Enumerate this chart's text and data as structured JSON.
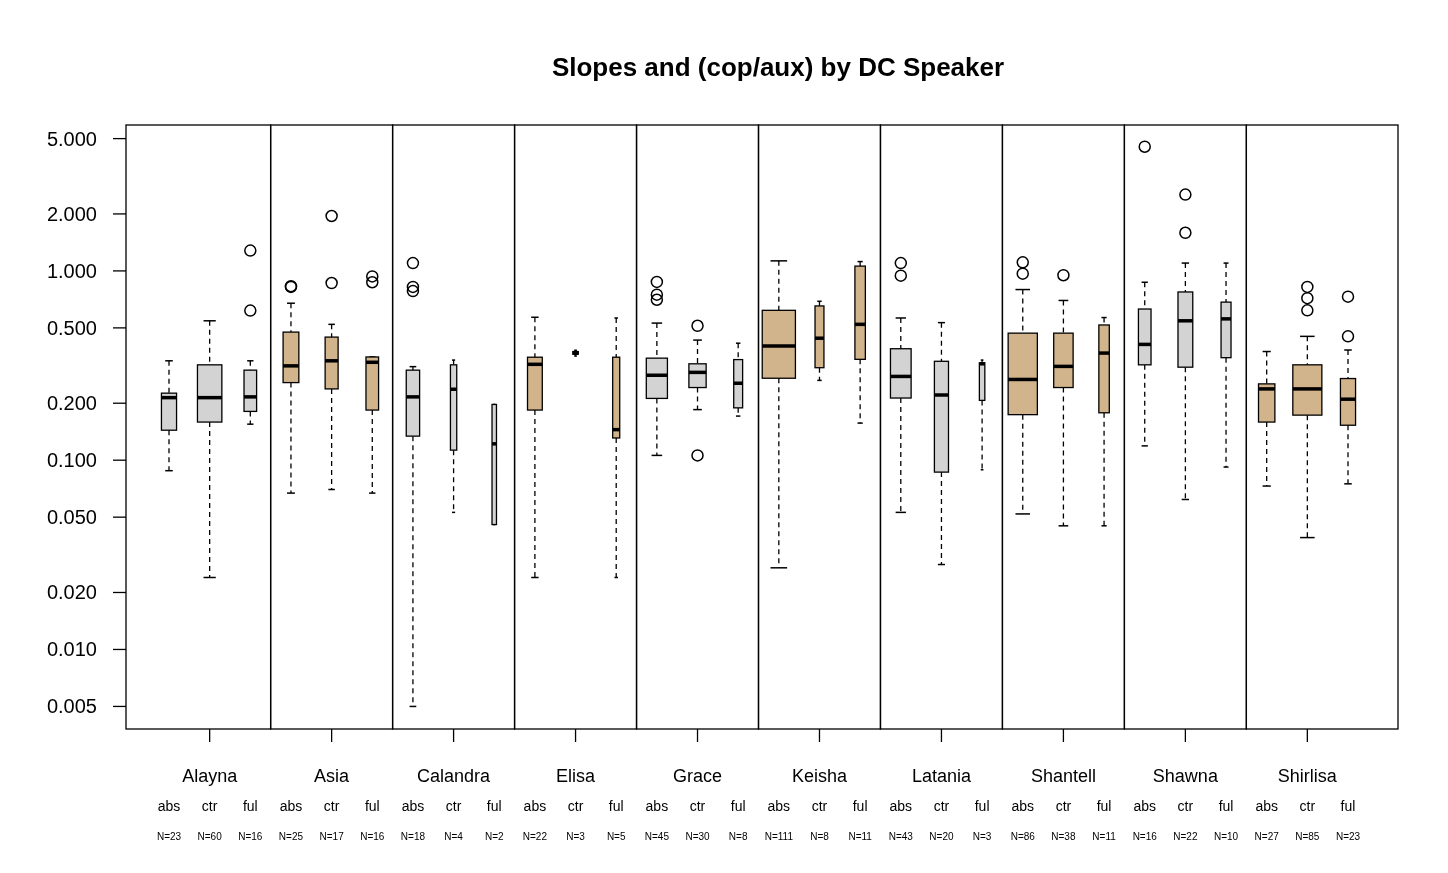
{
  "chart_data": [
    {
      "type": "box",
      "xlabel": "Alayna",
      "categories": [
        "abs",
        "ctr",
        "ful"
      ],
      "log": true,
      "ylim": [
        0.0038,
        5.9
      ],
      "yticks": [
        {
          "value": 0.005,
          "label": "0.005"
        },
        {
          "value": 0.01,
          "label": "0.010"
        },
        {
          "value": 0.02,
          "label": "0.020"
        },
        {
          "value": 0.05,
          "label": "0.050"
        },
        {
          "value": 0.1,
          "label": "0.100"
        },
        {
          "value": 0.2,
          "label": "0.200"
        },
        {
          "value": 0.5,
          "label": "0.500"
        },
        {
          "value": 1,
          "label": "1.000"
        },
        {
          "value": 2,
          "label": "2.000"
        },
        {
          "value": 5,
          "label": "5.000"
        }
      ],
      "colors": [
        "#d3d3d3",
        "#d3d3d3",
        "#d3d3d3"
      ],
      "boxes": [
        {
          "low": 0.088,
          "q1": 0.144,
          "median": 0.214,
          "q3": 0.226,
          "high": 0.335
        },
        {
          "low": 0.024,
          "q1": 0.159,
          "median": 0.214,
          "q3": 0.319,
          "high": 0.545
        },
        {
          "low": 0.155,
          "q1": 0.181,
          "median": 0.216,
          "q3": 0.299,
          "high": 0.335,
          "outliers": [
            1.28,
            0.617
          ]
        }
      ],
      "annotations": [
        "N=23",
        "N=60",
        "N=16"
      ]
    },
    {
      "type": "box",
      "xlabel": "Asia",
      "categories": [
        "abs",
        "ctr",
        "ful"
      ],
      "log": true,
      "tick_labels": "x",
      "ylim": [
        0.0038,
        5.9
      ],
      "colors": [
        "#d2b48c",
        "#d2b48c",
        "#d2b48c"
      ],
      "boxes": [
        {
          "low": 0.067,
          "q1": 0.257,
          "median": 0.315,
          "q3": 0.475,
          "high": 0.675,
          "outliers": [
            0.823,
            0.83
          ]
        },
        {
          "low": 0.07,
          "q1": 0.238,
          "median": 0.335,
          "q3": 0.447,
          "high": 0.522,
          "outliers": [
            1.95,
            0.863
          ]
        },
        {
          "low": 0.067,
          "q1": 0.184,
          "median": 0.329,
          "q3": 0.351,
          "high": 0.351,
          "outliers": [
            0.935,
            0.871
          ]
        }
      ],
      "annotations": [
        "N=25",
        "N=17",
        "N=16"
      ]
    },
    {
      "type": "box",
      "xlabel": "Calandra",
      "categories": [
        "abs",
        "ctr",
        "ful"
      ],
      "log": true,
      "tick_labels": "x",
      "ylim": [
        0.0038,
        5.9
      ],
      "colors": [
        "#d3d3d3",
        "#d3d3d3",
        "#d3d3d3"
      ],
      "boxes": [
        {
          "low": 0.005,
          "q1": 0.134,
          "median": 0.216,
          "q3": 0.299,
          "high": 0.312,
          "outliers": [
            1.1,
            0.823,
            0.782
          ]
        },
        {
          "low": 0.053,
          "q1": 0.113,
          "median": 0.237,
          "q3": 0.319,
          "high": 0.338
        },
        {
          "low": 0.0457,
          "q1": 0.0457,
          "median": 0.122,
          "q3": 0.197,
          "high": 0.197
        }
      ],
      "annotations": [
        "N=18",
        "N=4",
        "N=2"
      ]
    },
    {
      "type": "box",
      "xlabel": "Elisa",
      "categories": [
        "abs",
        "ctr",
        "ful"
      ],
      "log": true,
      "tick_labels": "x",
      "ylim": [
        0.0038,
        5.9
      ],
      "colors": [
        "#d2b48c",
        "#d2b48c",
        "#d2b48c"
      ],
      "boxes": [
        {
          "low": 0.024,
          "q1": 0.184,
          "median": 0.321,
          "q3": 0.35,
          "high": 0.569
        },
        {
          "low": 0.355,
          "q1": 0.363,
          "median": 0.368,
          "q3": 0.375,
          "high": 0.381
        },
        {
          "low": 0.024,
          "q1": 0.131,
          "median": 0.145,
          "q3": 0.35,
          "high": 0.564
        }
      ],
      "annotations": [
        "N=22",
        "N=3",
        "N=5"
      ]
    },
    {
      "type": "box",
      "xlabel": "Grace",
      "categories": [
        "abs",
        "ctr",
        "ful"
      ],
      "log": true,
      "tick_labels": "x",
      "ylim": [
        0.0038,
        5.9
      ],
      "colors": [
        "#d3d3d3",
        "#d3d3d3",
        "#d3d3d3"
      ],
      "boxes": [
        {
          "low": 0.106,
          "q1": 0.212,
          "median": 0.281,
          "q3": 0.346,
          "high": 0.53,
          "outliers": [
            0.875,
            0.749,
            0.704
          ]
        },
        {
          "low": 0.185,
          "q1": 0.242,
          "median": 0.291,
          "q3": 0.323,
          "high": 0.431,
          "outliers": [
            0.513,
            0.106
          ]
        },
        {
          "low": 0.171,
          "q1": 0.189,
          "median": 0.255,
          "q3": 0.34,
          "high": 0.415
        }
      ],
      "annotations": [
        "N=45",
        "N=30",
        "N=8"
      ]
    },
    {
      "type": "box",
      "title": "Slopes and (cop/aux) by DC Speaker",
      "xlabel": "Keisha",
      "categories": [
        "abs",
        "ctr",
        "ful"
      ],
      "log": true,
      "tick_labels": "x",
      "ylim": [
        0.0038,
        5.9
      ],
      "colors": [
        "#d2b48c",
        "#d2b48c",
        "#d2b48c"
      ],
      "boxes": [
        {
          "low": 0.027,
          "q1": 0.271,
          "median": 0.401,
          "q3": 0.619,
          "high": 1.13
        },
        {
          "low": 0.264,
          "q1": 0.308,
          "median": 0.441,
          "q3": 0.653,
          "high": 0.691
        },
        {
          "low": 0.157,
          "q1": 0.341,
          "median": 0.522,
          "q3": 1.06,
          "high": 1.12
        }
      ],
      "annotations": [
        "N=111",
        "N=8",
        "N=11"
      ]
    },
    {
      "type": "box",
      "xlabel": "Latania",
      "categories": [
        "abs",
        "ctr",
        "ful"
      ],
      "log": true,
      "tick_labels": "x",
      "ylim": [
        0.0038,
        5.9
      ],
      "colors": [
        "#d3d3d3",
        "#d3d3d3",
        "#d3d3d3"
      ],
      "boxes": [
        {
          "low": 0.053,
          "q1": 0.213,
          "median": 0.277,
          "q3": 0.388,
          "high": 0.564,
          "outliers": [
            1.1,
            0.944
          ]
        },
        {
          "low": 0.0281,
          "q1": 0.0865,
          "median": 0.221,
          "q3": 0.333,
          "high": 0.533
        },
        {
          "low": 0.089,
          "q1": 0.207,
          "median": 0.323,
          "q3": 0.327,
          "high": 0.338
        }
      ],
      "annotations": [
        "N=43",
        "N=20",
        "N=3"
      ]
    },
    {
      "type": "box",
      "xlabel": "Shantell",
      "categories": [
        "abs",
        "ctr",
        "ful"
      ],
      "log": true,
      "tick_labels": "x",
      "ylim": [
        0.0038,
        5.9
      ],
      "colors": [
        "#d2b48c",
        "#d2b48c",
        "#d2b48c"
      ],
      "boxes": [
        {
          "low": 0.052,
          "q1": 0.174,
          "median": 0.267,
          "q3": 0.469,
          "high": 0.797,
          "outliers": [
            1.11,
            0.967
          ]
        },
        {
          "low": 0.045,
          "q1": 0.242,
          "median": 0.313,
          "q3": 0.469,
          "high": 0.698,
          "outliers": [
            0.949
          ]
        },
        {
          "low": 0.045,
          "q1": 0.178,
          "median": 0.368,
          "q3": 0.518,
          "high": 0.567
        }
      ],
      "annotations": [
        "N=86",
        "N=38",
        "N=11"
      ]
    },
    {
      "type": "box",
      "xlabel": "Shawna",
      "categories": [
        "abs",
        "ctr",
        "ful"
      ],
      "log": true,
      "tick_labels": "x",
      "ylim": [
        0.0038,
        5.9
      ],
      "colors": [
        "#d3d3d3",
        "#d3d3d3",
        "#d3d3d3"
      ],
      "boxes": [
        {
          "low": 0.119,
          "q1": 0.319,
          "median": 0.409,
          "q3": 0.629,
          "high": 0.871,
          "outliers": [
            4.53
          ]
        },
        {
          "low": 0.062,
          "q1": 0.31,
          "median": 0.545,
          "q3": 0.774,
          "high": 1.1,
          "outliers": [
            2.53,
            1.59
          ]
        },
        {
          "low": 0.092,
          "q1": 0.348,
          "median": 0.558,
          "q3": 0.684,
          "high": 1.1
        }
      ],
      "annotations": [
        "N=16",
        "N=22",
        "N=10"
      ]
    },
    {
      "type": "box",
      "xlabel": "Shirlisa",
      "categories": [
        "abs",
        "ctr",
        "ful"
      ],
      "log": true,
      "tick_labels": "x",
      "ylim": [
        0.0038,
        5.9
      ],
      "colors": [
        "#d2b48c",
        "#d2b48c",
        "#d2b48c"
      ],
      "boxes": [
        {
          "low": 0.073,
          "q1": 0.159,
          "median": 0.238,
          "q3": 0.253,
          "high": 0.375
        },
        {
          "low": 0.039,
          "q1": 0.173,
          "median": 0.238,
          "q3": 0.319,
          "high": 0.451,
          "outliers": [
            0.823,
            0.718,
            0.619
          ]
        },
        {
          "low": 0.075,
          "q1": 0.153,
          "median": 0.21,
          "q3": 0.27,
          "high": 0.382,
          "outliers": [
            0.731,
            0.451
          ]
        }
      ],
      "annotations": [
        "N=27",
        "N=85",
        "N=23"
      ]
    }
  ]
}
